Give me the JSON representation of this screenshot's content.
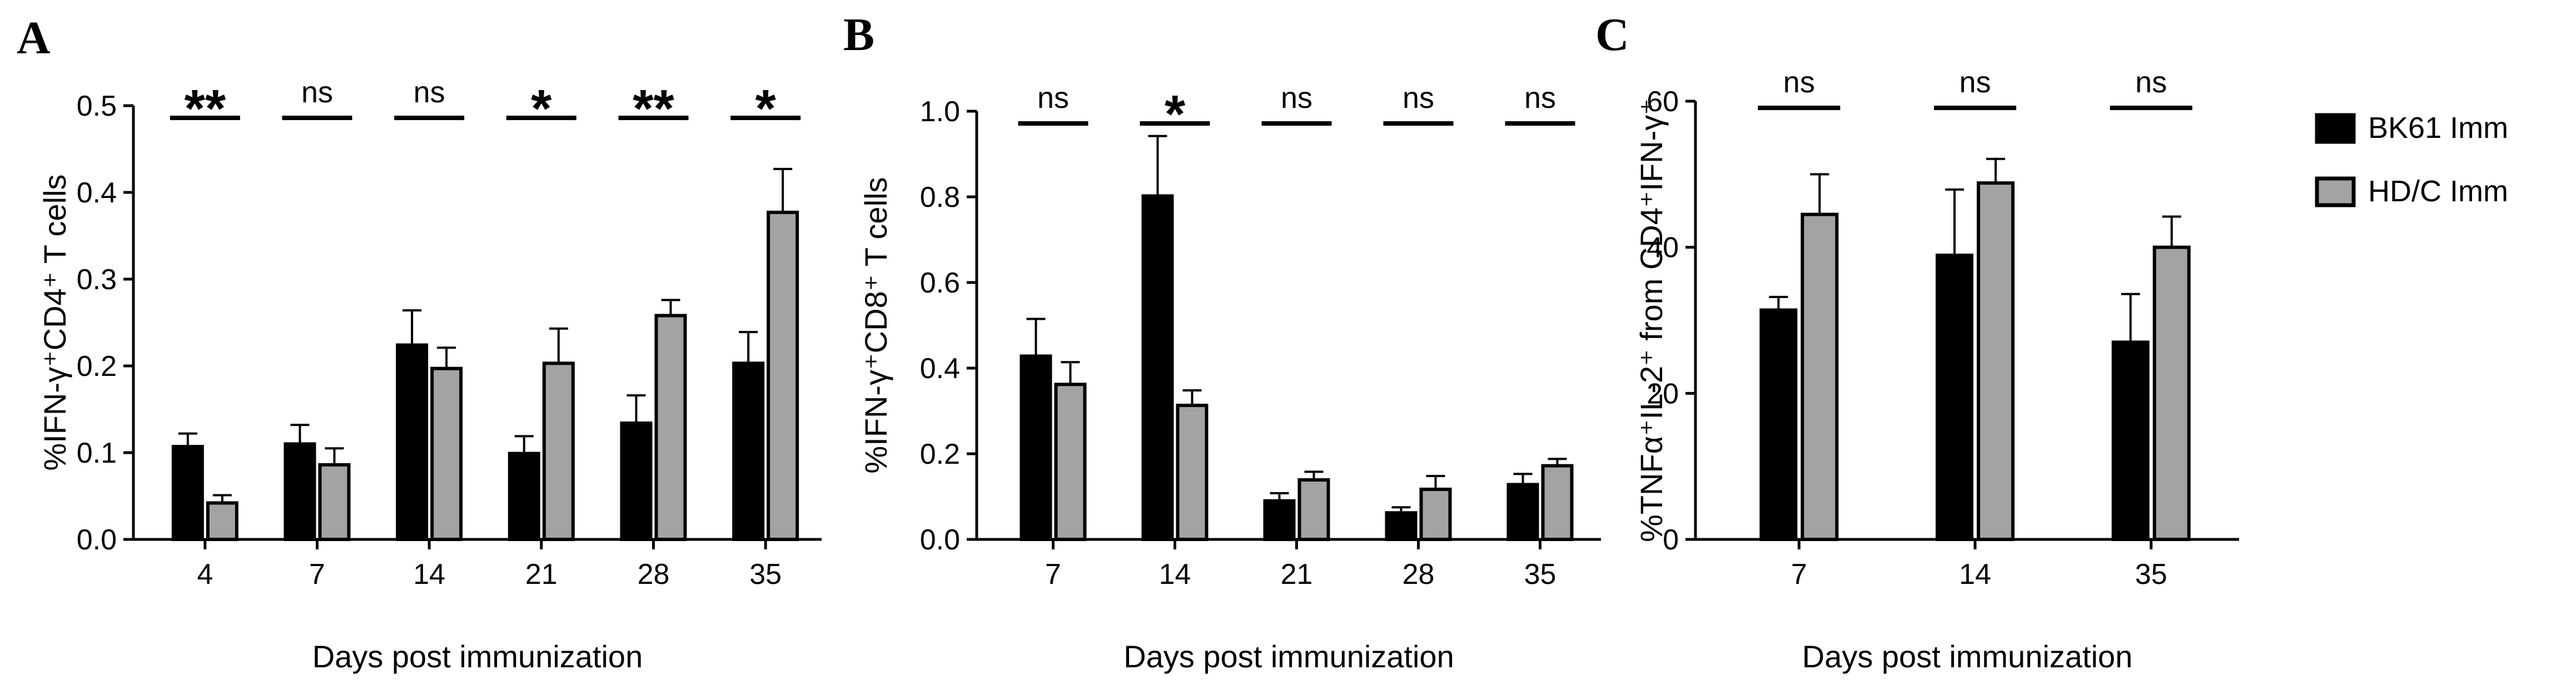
{
  "colors": {
    "group1": "#000000",
    "group2": "#a3a3a3"
  },
  "legend": {
    "entries": [
      {
        "label": "BK61 Imm",
        "color": "#000000"
      },
      {
        "label": "HD/C Imm",
        "color": "#a3a3a3"
      }
    ]
  },
  "chart_data": [
    {
      "panel": "A",
      "type": "bar",
      "xlabel": "Days post immunization",
      "ylabel": "%IFN-γ⁺CD4⁺ T cells",
      "ylim": [
        0,
        0.5
      ],
      "yticks": [
        "0.0",
        "0.1",
        "0.2",
        "0.3",
        "0.4",
        "0.5"
      ],
      "categories": [
        "4",
        "7",
        "14",
        "21",
        "28",
        "35"
      ],
      "series": [
        {
          "name": "BK61 Imm",
          "values": [
            0.107,
            0.11,
            0.224,
            0.099,
            0.134,
            0.203
          ],
          "errors": [
            0.015,
            0.022,
            0.04,
            0.02,
            0.032,
            0.036
          ]
        },
        {
          "name": "HD/C Imm",
          "values": [
            0.042,
            0.086,
            0.197,
            0.203,
            0.258,
            0.377
          ],
          "errors": [
            0.009,
            0.019,
            0.024,
            0.04,
            0.018,
            0.05
          ]
        }
      ],
      "significance": [
        "**",
        "ns",
        "ns",
        "*",
        "**",
        "*"
      ],
      "grid": false,
      "legend": false
    },
    {
      "panel": "B",
      "type": "bar",
      "xlabel": "Days post immunization",
      "ylabel": "%IFN-γ⁺CD8⁺ T cells",
      "ylim": [
        0,
        1.0
      ],
      "yticks": [
        "0.0",
        "0.2",
        "0.4",
        "0.6",
        "0.8",
        "1.0"
      ],
      "categories": [
        "7",
        "14",
        "21",
        "28",
        "35"
      ],
      "series": [
        {
          "name": "BK61 Imm",
          "values": [
            0.428,
            0.802,
            0.09,
            0.062,
            0.128
          ],
          "errors": [
            0.087,
            0.14,
            0.018,
            0.013,
            0.025
          ]
        },
        {
          "name": "HD/C Imm",
          "values": [
            0.362,
            0.313,
            0.139,
            0.117,
            0.172
          ],
          "errors": [
            0.052,
            0.035,
            0.019,
            0.031,
            0.016
          ]
        }
      ],
      "significance": [
        "ns",
        "*",
        "ns",
        "ns",
        "ns"
      ],
      "grid": false,
      "legend": false
    },
    {
      "panel": "C",
      "type": "bar",
      "xlabel": "Days post immunization",
      "ylabel": "%TNFα⁺IL-2⁺ from CD4⁺IFN-γ⁺",
      "ylim": [
        0,
        60
      ],
      "yticks": [
        "0",
        "20",
        "40",
        "60"
      ],
      "categories": [
        "7",
        "14",
        "35"
      ],
      "series": [
        {
          "name": "BK61 Imm",
          "values": [
            31.4,
            38.9,
            27.0
          ],
          "errors": [
            1.8,
            9.0,
            6.6
          ]
        },
        {
          "name": "HD/C Imm",
          "values": [
            44.5,
            48.8,
            40.0
          ],
          "errors": [
            5.5,
            3.3,
            4.2
          ]
        }
      ],
      "significance": [
        "ns",
        "ns",
        "ns"
      ],
      "grid": false,
      "legend": "right"
    }
  ]
}
